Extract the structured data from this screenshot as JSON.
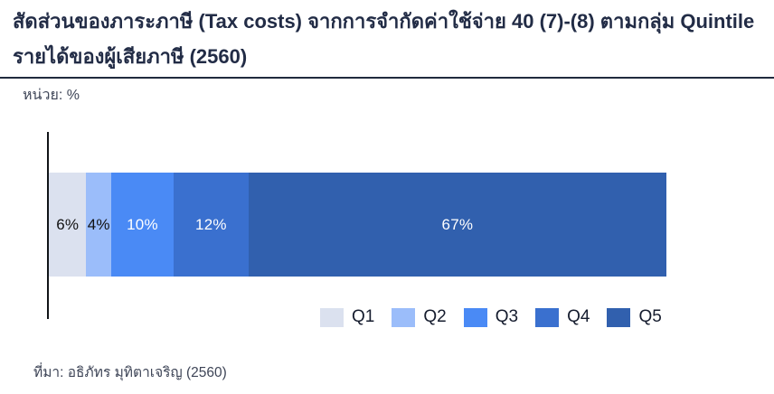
{
  "chart_data": {
    "type": "bar",
    "orientation": "horizontal",
    "stacked": true,
    "title": "สัดส่วนของภาระภาษี (Tax costs) จากการจำกัดค่าใช้จ่าย 40 (7)-(8) ตามกลุ่ม Quintile รายได้ของผู้เสียภาษี (2560)",
    "unit_label": "หน่วย: %",
    "unit": "%",
    "categories": [
      "Q1",
      "Q2",
      "Q3",
      "Q4",
      "Q5"
    ],
    "values": [
      6,
      4,
      10,
      12,
      67
    ],
    "data_labels": [
      "6%",
      "4%",
      "10%",
      "12%",
      "67%"
    ],
    "colors": [
      "#dbe1ef",
      "#9bbdfa",
      "#4a8af5",
      "#3a70cf",
      "#3160ae"
    ],
    "label_text_colors": [
      "#111111",
      "#111111",
      "#ffffff",
      "#ffffff",
      "#ffffff"
    ],
    "x_range": [
      0,
      100
    ],
    "grid": false,
    "legend": {
      "position": "bottom-right",
      "entries": [
        "Q1",
        "Q2",
        "Q3",
        "Q4",
        "Q5"
      ]
    },
    "source": "ที่มา: อธิภัทร มุทิตาเจริญ (2560)"
  }
}
